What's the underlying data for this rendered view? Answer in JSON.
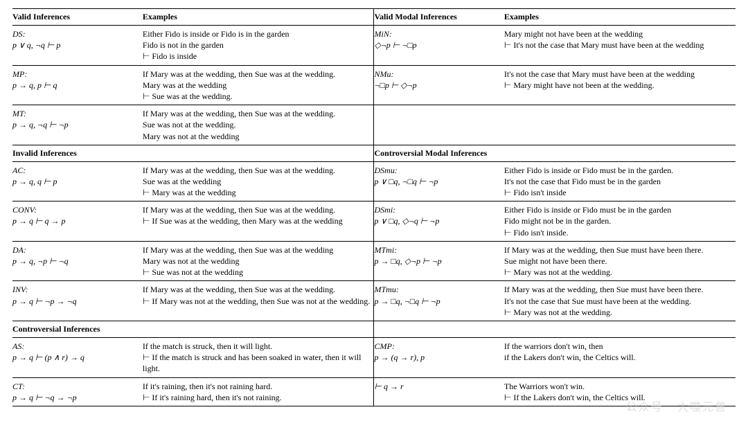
{
  "headers": {
    "left_title": "Valid Inferences",
    "left_examples": "Examples",
    "right_title": "Valid Modal Inferences",
    "right_examples": "Examples"
  },
  "sections": {
    "invalid": "Invalid Inferences",
    "controversial_modal": "Controversial Modal Inferences",
    "controversial": "Controversial Inferences"
  },
  "rules": {
    "DS": {
      "name": "DS:",
      "formula": "p ∨ q, ¬q ⊢ p",
      "ex1": "Either Fido is inside or Fido is in the garden",
      "ex2": "Fido is not in the garden",
      "ex3": "⊢ Fido is inside"
    },
    "MiN": {
      "name": "MiN:",
      "formula": "◇¬p ⊢ ¬□p",
      "ex1": "Mary might not have been at the wedding",
      "ex2": "⊢ It's not the case that Mary must have been at the wedding"
    },
    "MP": {
      "name": "MP:",
      "formula": "p → q, p ⊢ q",
      "ex1": "If Mary was at the wedding, then Sue was at the wedding.",
      "ex2": "Mary was at the wedding",
      "ex3": "⊢ Sue was at the wedding."
    },
    "NMu": {
      "name": "NMu:",
      "formula": "¬□p ⊢ ◇¬p",
      "ex1": "It's not the case that Mary must have been at the wedding",
      "ex2": "⊢ Mary might have not been at the wedding."
    },
    "MT": {
      "name": "MT:",
      "formula": "p → q, ¬q ⊢ ¬p",
      "ex1": "If Mary was at the wedding, then Sue was at the wedding.",
      "ex2": "Sue was not at the wedding.",
      "ex3": "Mary was not at the wedding"
    },
    "AC": {
      "name": "AC:",
      "formula": "p → q, q ⊢ p",
      "ex1": "If Mary was at the wedding, then Sue was at the wedding.",
      "ex2": "Sue was at the wedding",
      "ex3": "⊢ Mary was at the wedding"
    },
    "DSmu": {
      "name": "DSmu:",
      "formula": "p ∨ □q, ¬□q ⊢ ¬p",
      "ex1": "Either Fido is inside or Fido must be in the garden.",
      "ex2": "It's not the case that Fido must be in the garden",
      "ex3": "⊢ Fido isn't inside"
    },
    "CONV": {
      "name": "CONV:",
      "formula": "p → q ⊢ q → p",
      "ex1": "If Mary was at the wedding, then Sue was at the wedding.",
      "ex2": "⊢ If Sue was at the wedding, then Mary was at the wedding"
    },
    "DSmi": {
      "name": "DSmi:",
      "formula": "p ∨ □q, ◇¬q ⊢ ¬p",
      "ex1": "Either Fido is inside or Fido must be in the garden",
      "ex2": "Fido might not be in the garden.",
      "ex3": "⊢ Fido isn't inside."
    },
    "DA": {
      "name": "DA:",
      "formula": "p → q, ¬p ⊢ ¬q",
      "ex1": "If Mary was at the wedding, then Sue was at the wedding",
      "ex2": "Mary was not at the wedding",
      "ex3": "⊢ Sue was not at the wedding"
    },
    "MTmi": {
      "name": "MTmi:",
      "formula": "p → □q, ◇¬p ⊢ ¬p",
      "ex1": "If Mary was at the wedding, then Sue must have been there.",
      "ex2": "Sue might not have been there.",
      "ex3": "⊢ Mary was not at the wedding."
    },
    "INV": {
      "name": "INV:",
      "formula": "p → q ⊢ ¬p → ¬q",
      "ex1": "If Mary was at the wedding, then Sue was at the wedding.",
      "ex2": "⊢ If Mary was not at the wedding, then Sue was not at the wedding."
    },
    "MTmu": {
      "name": "MTmu:",
      "formula": "p → □q, ¬□q ⊢ ¬p",
      "ex1": "If Mary was at the wedding, then Sue must have been there.",
      "ex2": "It's not the case that Sue must have been at the wedding.",
      "ex3": "⊢ Mary was not at the wedding."
    },
    "AS": {
      "name": "AS:",
      "formula": "p → q ⊢ (p ∧ r) → q",
      "ex1": "If the match is struck, then it will light.",
      "ex2": "⊢ If the match is struck and has been soaked in water, then it will light."
    },
    "CMP": {
      "name": "CMP:",
      "formula": "p → (q → r), p",
      "formula2": "⊢ q → r",
      "ex1": "If the warriors don't win, then",
      "ex2": "if the Lakers don't win, the Celtics will.",
      "ex3": "The Warriors won't win.",
      "ex4": "⊢ If the Lakers don't win, the Celtics will."
    },
    "CT": {
      "name": "CT:",
      "formula": "p → q ⊢ ¬q → ¬p",
      "ex1": "If it's raining, then it's not raining hard.",
      "ex2": "⊢ If it's raining hard, then it's not raining."
    }
  },
  "watermark": "公众号 · 大噬元兽"
}
